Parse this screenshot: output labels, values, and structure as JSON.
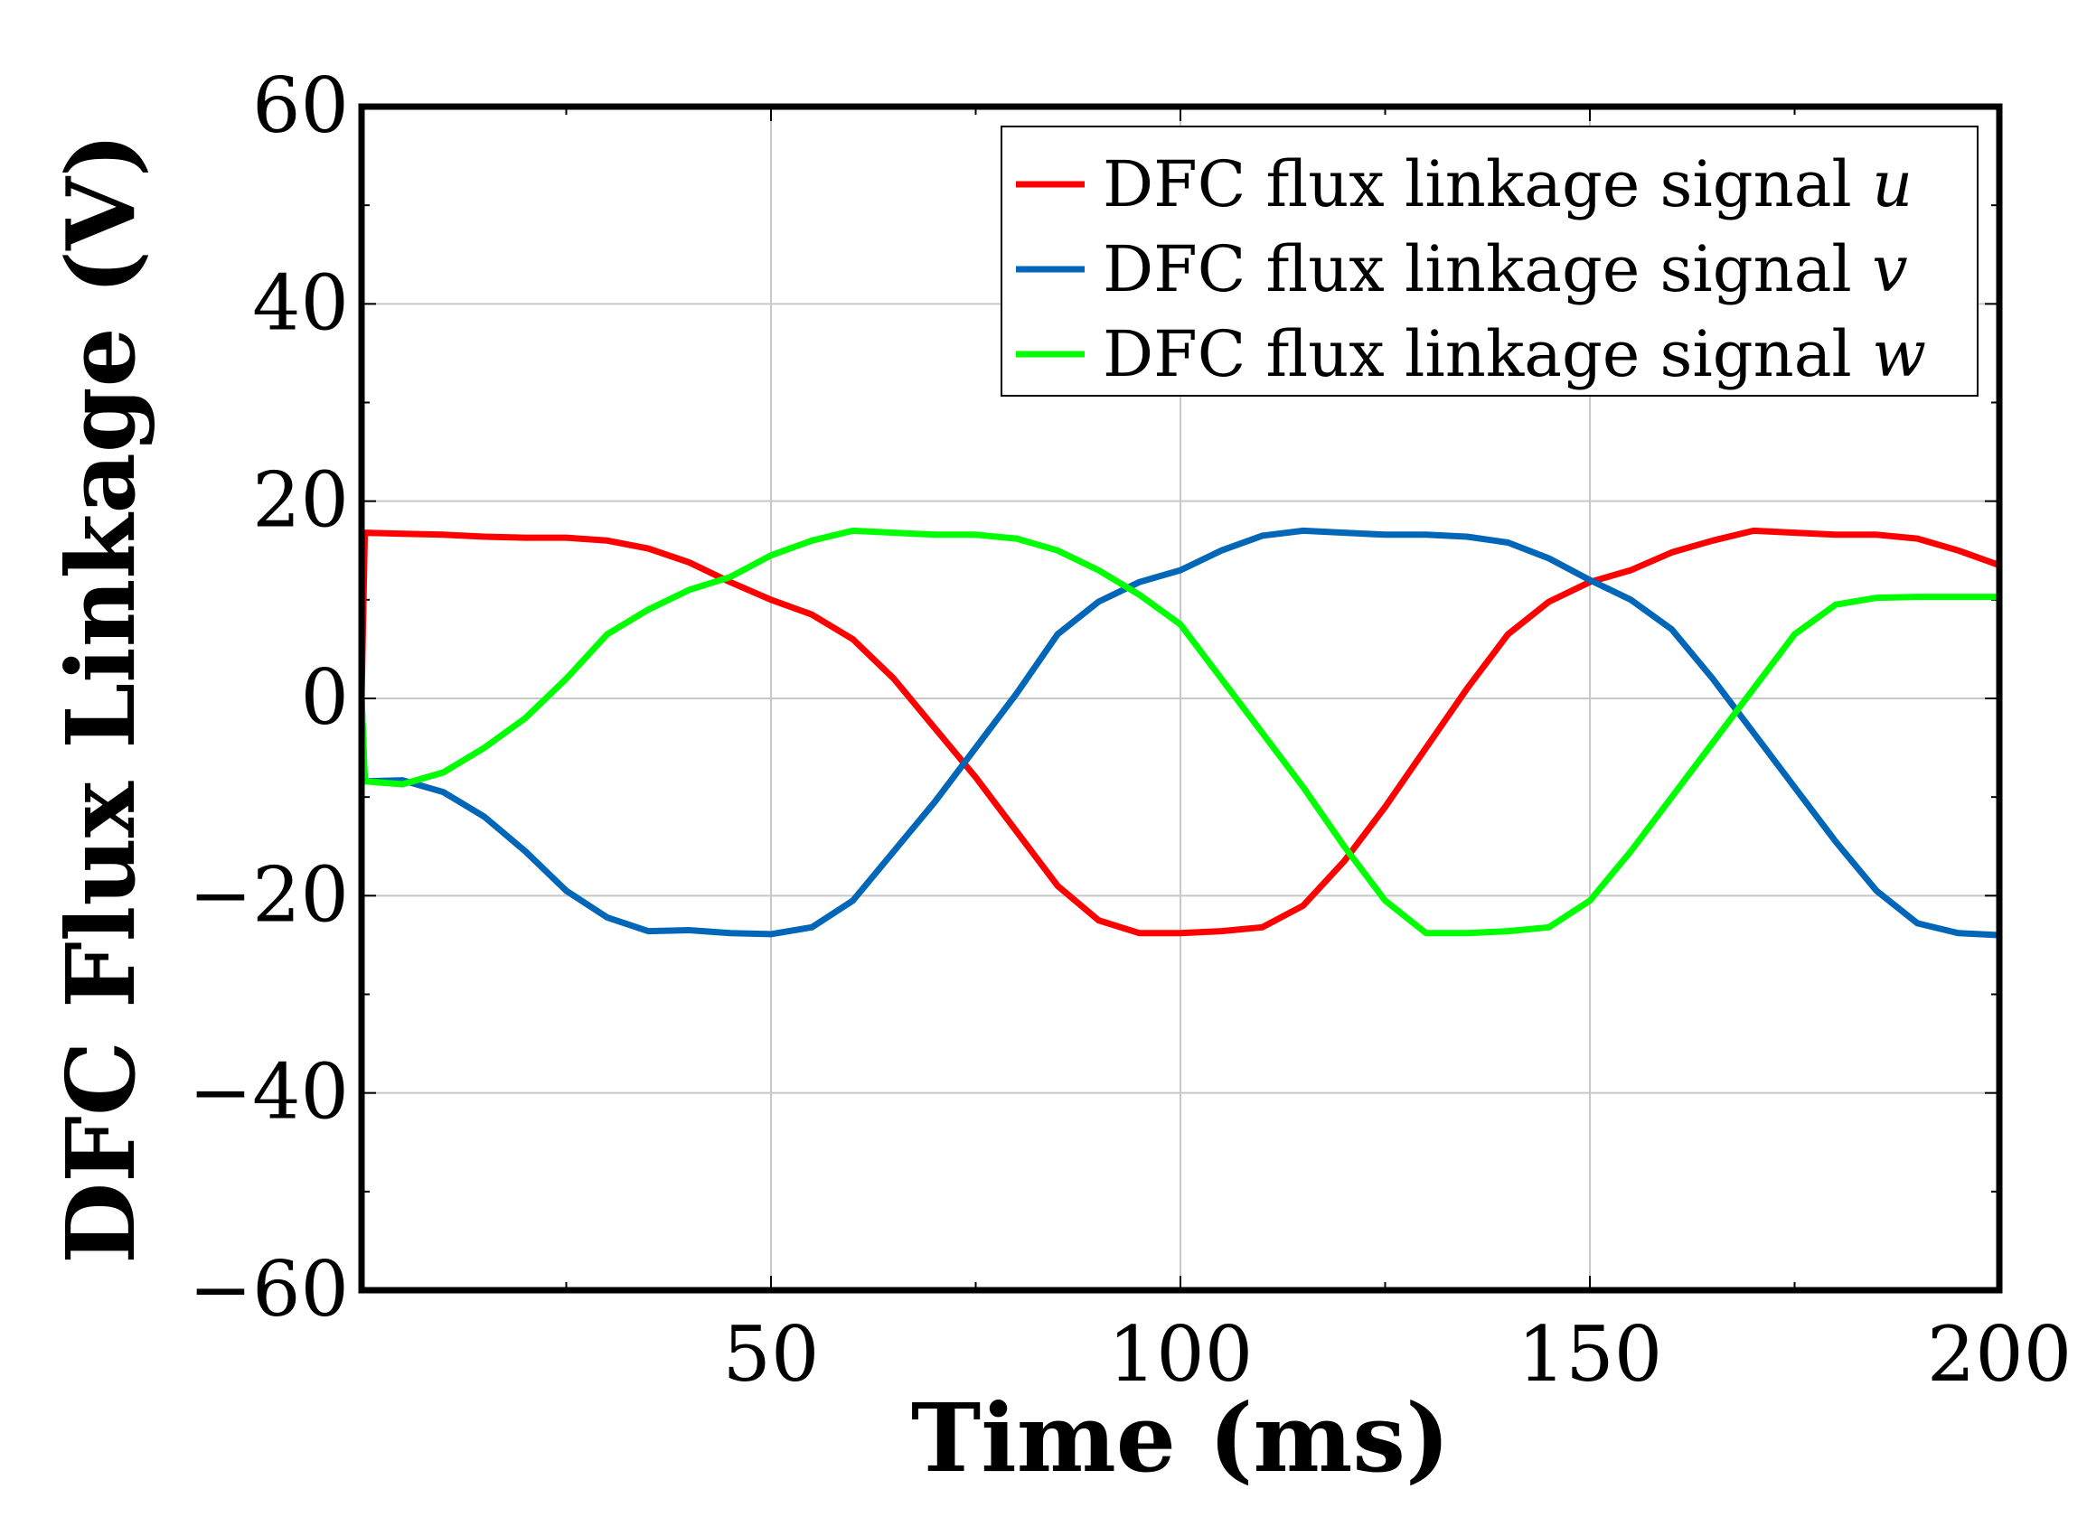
{
  "chart_data": {
    "type": "line",
    "xlabel": "Time (ms)",
    "ylabel": "DFC Flux Linkage (V)",
    "xlim": [
      0,
      200
    ],
    "ylim": [
      -60,
      60
    ],
    "xticks": [
      50,
      100,
      150,
      200
    ],
    "xtick_labels": [
      "50",
      "100",
      "150",
      "200"
    ],
    "yticks": [
      60,
      40,
      20,
      0,
      -20,
      -40,
      -60
    ],
    "ytick_labels": [
      "60",
      "40",
      "20",
      "0",
      "−20",
      "−40",
      "−60"
    ],
    "grid": true,
    "legend_position": "top-right",
    "series": [
      {
        "name": "DFC flux linkage signal u",
        "name_prefix": "DFC flux linkage signal ",
        "name_var": "u",
        "color": "#ff0000",
        "x": [
          0,
          0.4,
          5,
          10,
          15,
          20,
          25,
          30,
          35,
          40,
          45,
          50,
          55,
          60,
          65,
          70,
          75,
          80,
          85,
          90,
          95,
          100,
          105,
          110,
          115,
          120,
          125,
          130,
          135,
          140,
          145,
          150,
          155,
          160,
          165,
          170,
          175,
          180,
          185,
          190,
          195,
          200
        ],
        "y": [
          0,
          16.8,
          16.7,
          16.6,
          16.4,
          16.3,
          16.3,
          16.0,
          15.2,
          13.8,
          11.8,
          10.0,
          8.5,
          6.0,
          2.0,
          -3.0,
          -8.0,
          -13.5,
          -19.0,
          -22.5,
          -23.8,
          -23.8,
          -23.6,
          -23.2,
          -21.0,
          -16.5,
          -11.0,
          -5.0,
          1.0,
          6.5,
          9.8,
          11.8,
          13.0,
          14.8,
          16.0,
          17.0,
          16.8,
          16.6,
          16.6,
          16.2,
          15.0,
          13.5
        ]
      },
      {
        "name": "DFC flux linkage signal v",
        "name_prefix": "DFC flux linkage signal ",
        "name_var": "v",
        "color": "#0066b8",
        "x": [
          0,
          0.4,
          5,
          10,
          15,
          20,
          25,
          30,
          35,
          40,
          45,
          50,
          55,
          60,
          65,
          70,
          75,
          80,
          85,
          90,
          95,
          100,
          105,
          110,
          115,
          120,
          125,
          130,
          135,
          140,
          145,
          150,
          155,
          160,
          165,
          170,
          175,
          180,
          185,
          190,
          195,
          200
        ],
        "y": [
          0,
          -8.4,
          -8.3,
          -9.5,
          -12.0,
          -15.5,
          -19.5,
          -22.2,
          -23.6,
          -23.5,
          -23.8,
          -23.9,
          -23.2,
          -20.5,
          -15.5,
          -10.5,
          -5.0,
          0.5,
          6.5,
          9.8,
          11.8,
          13.0,
          15.0,
          16.5,
          17.0,
          16.8,
          16.6,
          16.6,
          16.4,
          15.8,
          14.2,
          12.0,
          10.0,
          7.0,
          2.0,
          -3.5,
          -9.0,
          -14.5,
          -19.5,
          -22.8,
          -23.8,
          -24.0
        ]
      },
      {
        "name": "DFC flux linkage signal w",
        "name_prefix": "DFC flux linkage signal ",
        "name_var": "w",
        "color": "#00ff00",
        "x": [
          0,
          0.4,
          5,
          10,
          15,
          20,
          25,
          30,
          35,
          40,
          45,
          50,
          55,
          60,
          65,
          70,
          75,
          80,
          85,
          90,
          95,
          100,
          105,
          110,
          115,
          120,
          125,
          130,
          135,
          140,
          145,
          150,
          155,
          160,
          165,
          170,
          175,
          180,
          185,
          190,
          195,
          200
        ],
        "y": [
          0,
          -8.4,
          -8.7,
          -7.5,
          -5.0,
          -2.0,
          2.0,
          6.5,
          9.0,
          11.0,
          12.3,
          14.5,
          16.0,
          17.0,
          16.8,
          16.6,
          16.6,
          16.2,
          15.0,
          13.0,
          10.5,
          7.5,
          2.0,
          -3.5,
          -9.0,
          -15.0,
          -20.5,
          -23.8,
          -23.8,
          -23.6,
          -23.2,
          -20.5,
          -15.5,
          -10.0,
          -4.5,
          1.0,
          6.5,
          9.5,
          10.2,
          10.3,
          10.3,
          10.3
        ]
      }
    ]
  }
}
